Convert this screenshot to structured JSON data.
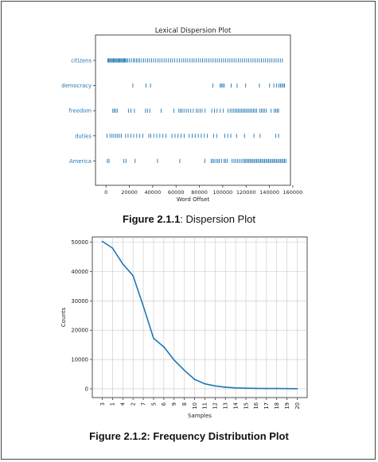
{
  "figures": [
    {
      "caption_label": "Figure 2.1.1",
      "caption_text": ": Dispersion Plot"
    },
    {
      "caption_label": "Figure 2.1.2: Frequency Distribution Plot"
    }
  ],
  "chart_data": [
    {
      "type": "scatter",
      "title": "Lexical Dispersion Plot",
      "xlabel": "Word Offset",
      "ylabel": "",
      "xlim": [
        -9000,
        158000
      ],
      "xticks": [
        0,
        20000,
        40000,
        60000,
        80000,
        100000,
        120000,
        140000,
        160000
      ],
      "categories": [
        "citizens",
        "democracy",
        "freedom",
        "duties",
        "America"
      ],
      "color": "#1f77b4",
      "series": [
        {
          "name": "citizens",
          "x": [
            1500,
            2300,
            3100,
            3900,
            4700,
            5500,
            6300,
            7100,
            7900,
            8700,
            9500,
            10300,
            11100,
            11900,
            12700,
            13500,
            14300,
            15100,
            15900,
            16700,
            17500,
            18700,
            20200,
            21800,
            23500,
            24600,
            26100,
            27500,
            28900,
            30500,
            32200,
            33900,
            35600,
            37300,
            39100,
            40800,
            42600,
            44500,
            46200,
            48000,
            49800,
            51600,
            53500,
            55300,
            57000,
            58900,
            61000,
            62800,
            64700,
            66500,
            68200,
            70000,
            71900,
            73700,
            75400,
            77300,
            79100,
            80900,
            82700,
            84500,
            86300,
            88100,
            89900,
            91700,
            93500,
            95300,
            97100,
            98900,
            100700,
            102500,
            104300,
            106100,
            107900,
            109700,
            111500,
            113300,
            115100,
            116900,
            118700,
            120500,
            122300,
            124100,
            125900,
            127700,
            129500,
            131300,
            133100,
            134900,
            136700,
            138500,
            140300,
            142100,
            143900,
            145700,
            147500,
            149300,
            151100
          ]
        },
        {
          "name": "democracy",
          "x": [
            23000,
            34200,
            38100,
            91500,
            97800,
            98900,
            100100,
            101300,
            107200,
            112300,
            119600,
            131400,
            140100,
            143800,
            146200,
            148100,
            149400,
            150600,
            151800,
            152900
          ]
        },
        {
          "name": "freedom",
          "x": [
            5800,
            7000,
            8200,
            9600,
            19200,
            21400,
            24300,
            33800,
            35500,
            37500,
            47200,
            58100,
            62400,
            63800,
            65100,
            66800,
            68700,
            70400,
            72600,
            74800,
            77400,
            78900,
            80600,
            82300,
            84900,
            90600,
            92900,
            95200,
            97800,
            100500,
            104500,
            106300,
            107800,
            109400,
            110800,
            112100,
            113400,
            114700,
            116000,
            117300,
            118600,
            119900,
            121200,
            122500,
            123800,
            125100,
            126400,
            127700,
            129000,
            131800,
            133100,
            134400,
            135700,
            137200,
            141400,
            144100,
            145400,
            146600,
            147800
          ]
        },
        {
          "name": "duties",
          "x": [
            900,
            3400,
            5100,
            6700,
            8300,
            9900,
            11500,
            13100,
            16800,
            18900,
            21300,
            23700,
            26300,
            28900,
            31500,
            36700,
            38300,
            40900,
            43500,
            46100,
            48700,
            51300,
            56500,
            59100,
            61700,
            64300,
            66900,
            71200,
            73800,
            76400,
            79000,
            81600,
            84200,
            86800,
            92100,
            94800,
            101700,
            104300,
            106900,
            111800,
            118600,
            126700,
            131900,
            145300,
            147800
          ]
        },
        {
          "name": "America",
          "x": [
            1200,
            2600,
            15300,
            17100,
            24900,
            44100,
            63200,
            84700,
            90100,
            91400,
            92600,
            94200,
            95800,
            97000,
            99100,
            101200,
            102300,
            103800,
            108000,
            109600,
            111100,
            112700,
            114200,
            115800,
            117300,
            118700,
            119800,
            121000,
            122100,
            123300,
            124400,
            125500,
            126700,
            127800,
            129000,
            130100,
            131300,
            132400,
            133600,
            134700,
            135900,
            137000,
            138200,
            139300,
            140500,
            141600,
            142800,
            143900,
            145000,
            146200,
            147300,
            148500,
            149600,
            150700,
            151800,
            152900,
            154000
          ]
        }
      ]
    },
    {
      "type": "line",
      "title": "",
      "xlabel": "Samples",
      "ylabel": "Counts",
      "ylim": [
        -3000,
        51800
      ],
      "yticks": [
        0,
        10000,
        20000,
        30000,
        40000,
        50000
      ],
      "grid": true,
      "color": "#1f77b4",
      "categories": [
        "3",
        "1",
        "4",
        "2",
        "7",
        "5",
        "6",
        "9",
        "8",
        "10",
        "11",
        "12",
        "13",
        "14",
        "15",
        "16",
        "17",
        "18",
        "19",
        "20"
      ],
      "values": [
        50300,
        48000,
        42600,
        38600,
        28200,
        17200,
        14300,
        9800,
        6300,
        3200,
        1700,
        1000,
        550,
        300,
        200,
        140,
        100,
        80,
        60,
        40
      ]
    }
  ]
}
